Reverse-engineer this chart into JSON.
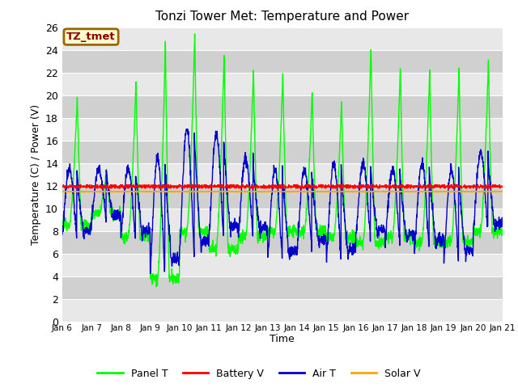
{
  "title": "Tonzi Tower Met: Temperature and Power",
  "xlabel": "Time",
  "ylabel": "Temperature (C) / Power (V)",
  "ylim": [
    0,
    26
  ],
  "xlim": [
    0,
    15
  ],
  "annotation_text": "TZ_tmet",
  "bg_color": "#ffffff",
  "plot_bg_color": "#d8d8d8",
  "band_color_light": "#e8e8e8",
  "band_color_dark": "#d0d0d0",
  "legend_labels": [
    "Panel T",
    "Battery V",
    "Air T",
    "Solar V"
  ],
  "legend_colors": [
    "#00ff00",
    "#ff0000",
    "#0000cd",
    "#ffa500"
  ],
  "xtick_labels": [
    "Jan 6",
    "Jan 7",
    "Jan 8",
    "Jan 9",
    "Jan 10",
    "Jan 11",
    "Jan 12",
    "Jan 13",
    "Jan 14",
    "Jan 15",
    "Jan 16",
    "Jan 17",
    "Jan 18",
    "Jan 19",
    "Jan 20",
    "Jan 21"
  ],
  "num_days": 15,
  "points_per_day": 144,
  "battery_v": 11.9,
  "solar_v": 11.5,
  "panel_day_peaks": [
    20.0,
    13.5,
    21.5,
    25.0,
    25.5,
    24.0,
    22.5,
    22.0,
    20.5,
    19.5,
    24.5,
    22.5,
    22.5,
    22.5,
    23.0
  ],
  "air_day_peaks": [
    13.5,
    13.5,
    13.5,
    14.5,
    17.0,
    16.5,
    14.5,
    13.5,
    13.5,
    14.0,
    14.0,
    13.5,
    14.0,
    13.5,
    15.0
  ],
  "air_day_lows": [
    7.5,
    9.0,
    7.5,
    4.5,
    6.0,
    7.5,
    7.5,
    5.5,
    6.5,
    5.5,
    7.5,
    7.0,
    6.5,
    5.5,
    8.0
  ],
  "panel_day_lows": [
    8.5,
    9.5,
    7.5,
    3.8,
    8.0,
    6.5,
    7.5,
    8.0,
    8.0,
    7.5,
    7.0,
    7.5,
    7.0,
    7.0,
    8.0
  ]
}
